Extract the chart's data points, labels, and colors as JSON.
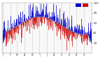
{
  "background_color": "#ffffff",
  "plot_bg_color": "#f8f8f8",
  "grid_color": "#bbbbbb",
  "ylim": [
    0,
    100
  ],
  "ylabel_values": [
    20,
    40,
    60,
    80,
    100
  ],
  "above_color": "#0000cc",
  "below_color": "#cc0000",
  "n_points": 365,
  "seed": 42,
  "avg_humidity": 55,
  "amplitude": 18,
  "noise_scale": 15,
  "month_starts": [
    0,
    31,
    59,
    90,
    120,
    151,
    181,
    212,
    243,
    273,
    304,
    334
  ],
  "month_labels": [
    "J",
    "F",
    "M",
    "A",
    "M",
    "J",
    "J",
    "A",
    "S",
    "O",
    "N",
    "D"
  ]
}
